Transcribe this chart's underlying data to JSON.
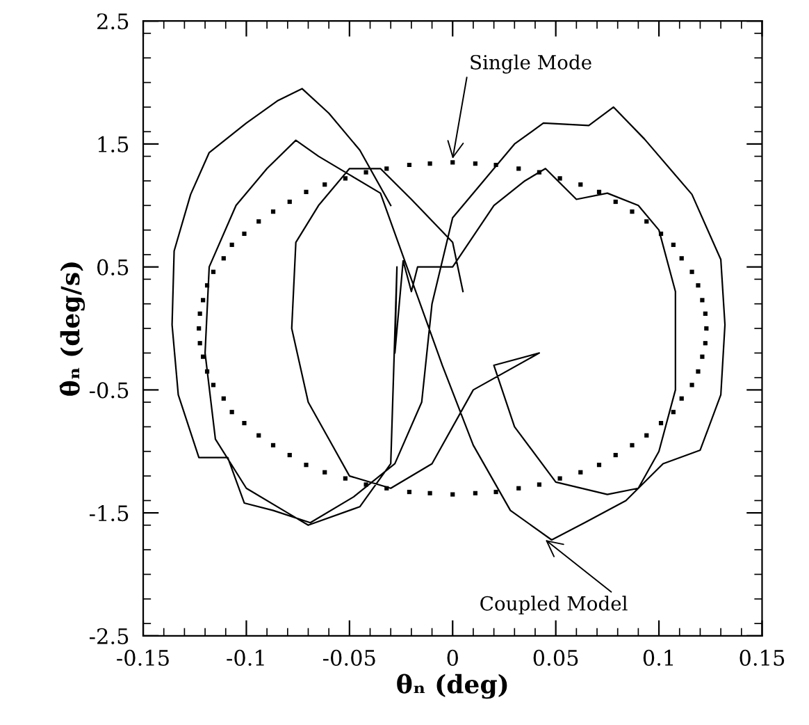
{
  "chart_data": {
    "type": "line",
    "xlabel": "θₙ (deg)",
    "ylabel": "θ̇ₙ (deg/s)",
    "xlim": [
      -0.15,
      0.15
    ],
    "xticks": [
      -0.15,
      -0.1,
      -0.05,
      0,
      0.05,
      0.1,
      0.15
    ],
    "ylim": [
      -2.5,
      2.5
    ],
    "yticks": [
      -2.5,
      -1.5,
      -0.5,
      0.5,
      1.5,
      2.5
    ],
    "grid": false,
    "legend": false,
    "annotations": [
      {
        "text": "Single Mode",
        "x": 0,
        "y": 1.38
      },
      {
        "text": "Coupled Model",
        "x": 0.045,
        "y": -1.72
      }
    ],
    "series": [
      {
        "color": "#000000",
        "line_style": "solid",
        "x": [
          -0.03,
          -0.045,
          -0.06,
          -0.073,
          -0.085,
          -0.1,
          -0.118,
          -0.127,
          -0.135,
          -0.136,
          -0.133,
          -0.123,
          -0.109,
          -0.101,
          -0.087,
          -0.069,
          -0.048,
          -0.028,
          -0.015,
          -0.01,
          0.0,
          0.015,
          0.03,
          0.044,
          0.066,
          0.078,
          0.093,
          0.116,
          0.13,
          0.132,
          0.13,
          0.12,
          0.102,
          0.084,
          0.064,
          0.048,
          0.028,
          0.01,
          -0.005,
          -0.02,
          -0.035,
          -0.05,
          -0.065,
          -0.076,
          -0.09,
          -0.105,
          -0.118,
          -0.12,
          -0.115,
          -0.1,
          -0.08,
          -0.07,
          -0.045,
          -0.03,
          -0.027,
          -0.028,
          -0.024,
          -0.02,
          -0.017,
          0.0,
          0.02,
          0.035,
          0.045,
          0.06,
          0.075,
          0.09,
          0.1,
          0.108,
          0.108,
          0.1,
          0.09,
          0.075,
          0.05,
          0.03,
          0.02,
          0.042,
          0.01,
          -0.01,
          -0.03,
          -0.05,
          -0.06,
          -0.07,
          -0.078,
          -0.076,
          -0.065,
          -0.05,
          -0.035,
          -0.02,
          0.0,
          0.005
        ],
        "values": [
          1.0,
          1.45,
          1.75,
          1.95,
          1.85,
          1.67,
          1.43,
          1.09,
          0.63,
          0.03,
          -0.54,
          -1.05,
          -1.05,
          -1.42,
          -1.48,
          -1.58,
          -1.37,
          -1.1,
          -0.6,
          0.2,
          0.9,
          1.2,
          1.5,
          1.67,
          1.65,
          1.8,
          1.54,
          1.09,
          0.56,
          0.03,
          -0.54,
          -0.99,
          -1.1,
          -1.4,
          -1.58,
          -1.72,
          -1.48,
          -0.95,
          -0.3,
          0.4,
          1.1,
          1.25,
          1.4,
          1.53,
          1.3,
          1.0,
          0.5,
          -0.2,
          -0.9,
          -1.3,
          -1.5,
          -1.6,
          -1.45,
          -1.1,
          0.5,
          -0.2,
          0.55,
          0.3,
          0.5,
          0.5,
          1.0,
          1.2,
          1.3,
          1.05,
          1.1,
          1.0,
          0.8,
          0.3,
          -0.5,
          -1.0,
          -1.3,
          -1.35,
          -1.25,
          -0.8,
          -0.3,
          -0.2,
          -0.5,
          -1.1,
          -1.3,
          -1.2,
          -0.9,
          -0.6,
          0.0,
          0.7,
          1.0,
          1.3,
          1.3,
          1.05,
          0.7,
          0.3
        ]
      },
      {
        "color": "#000000",
        "type": "scatter",
        "marker": "square",
        "x": [
          0.123,
          0.1225,
          0.121,
          0.119,
          0.116,
          0.111,
          0.107,
          0.101,
          0.094,
          0.087,
          0.079,
          0.071,
          0.062,
          0.052,
          0.042,
          0.032,
          0.021,
          0.011,
          0,
          -0.011,
          -0.021,
          -0.032,
          -0.042,
          -0.052,
          -0.062,
          -0.071,
          -0.079,
          -0.087,
          -0.094,
          -0.101,
          -0.107,
          -0.111,
          -0.116,
          -0.119,
          -0.121,
          -0.1225,
          -0.123,
          -0.1225,
          -0.121,
          -0.119,
          -0.116,
          -0.111,
          -0.107,
          -0.101,
          -0.094,
          -0.087,
          -0.079,
          -0.071,
          -0.062,
          -0.052,
          -0.042,
          -0.032,
          -0.021,
          -0.011,
          0,
          0.011,
          0.021,
          0.032,
          0.042,
          0.052,
          0.062,
          0.071,
          0.079,
          0.087,
          0.094,
          0.101,
          0.107,
          0.111,
          0.116,
          0.119,
          0.121,
          0.1225
        ],
        "values": [
          0,
          0.12,
          0.23,
          0.35,
          0.46,
          0.57,
          0.68,
          0.77,
          0.87,
          0.95,
          1.03,
          1.11,
          1.17,
          1.22,
          1.27,
          1.3,
          1.33,
          1.34,
          1.35,
          1.34,
          1.33,
          1.3,
          1.27,
          1.22,
          1.17,
          1.11,
          1.03,
          0.95,
          0.87,
          0.77,
          0.68,
          0.57,
          0.46,
          0.35,
          0.23,
          0.12,
          0,
          -0.12,
          -0.23,
          -0.35,
          -0.46,
          -0.57,
          -0.68,
          -0.77,
          -0.87,
          -0.95,
          -1.03,
          -1.11,
          -1.17,
          -1.22,
          -1.27,
          -1.3,
          -1.33,
          -1.34,
          -1.35,
          -1.34,
          -1.33,
          -1.3,
          -1.27,
          -1.22,
          -1.17,
          -1.11,
          -1.03,
          -0.95,
          -0.87,
          -0.77,
          -0.68,
          -0.57,
          -0.46,
          -0.35,
          -0.23,
          -0.12
        ]
      }
    ]
  }
}
